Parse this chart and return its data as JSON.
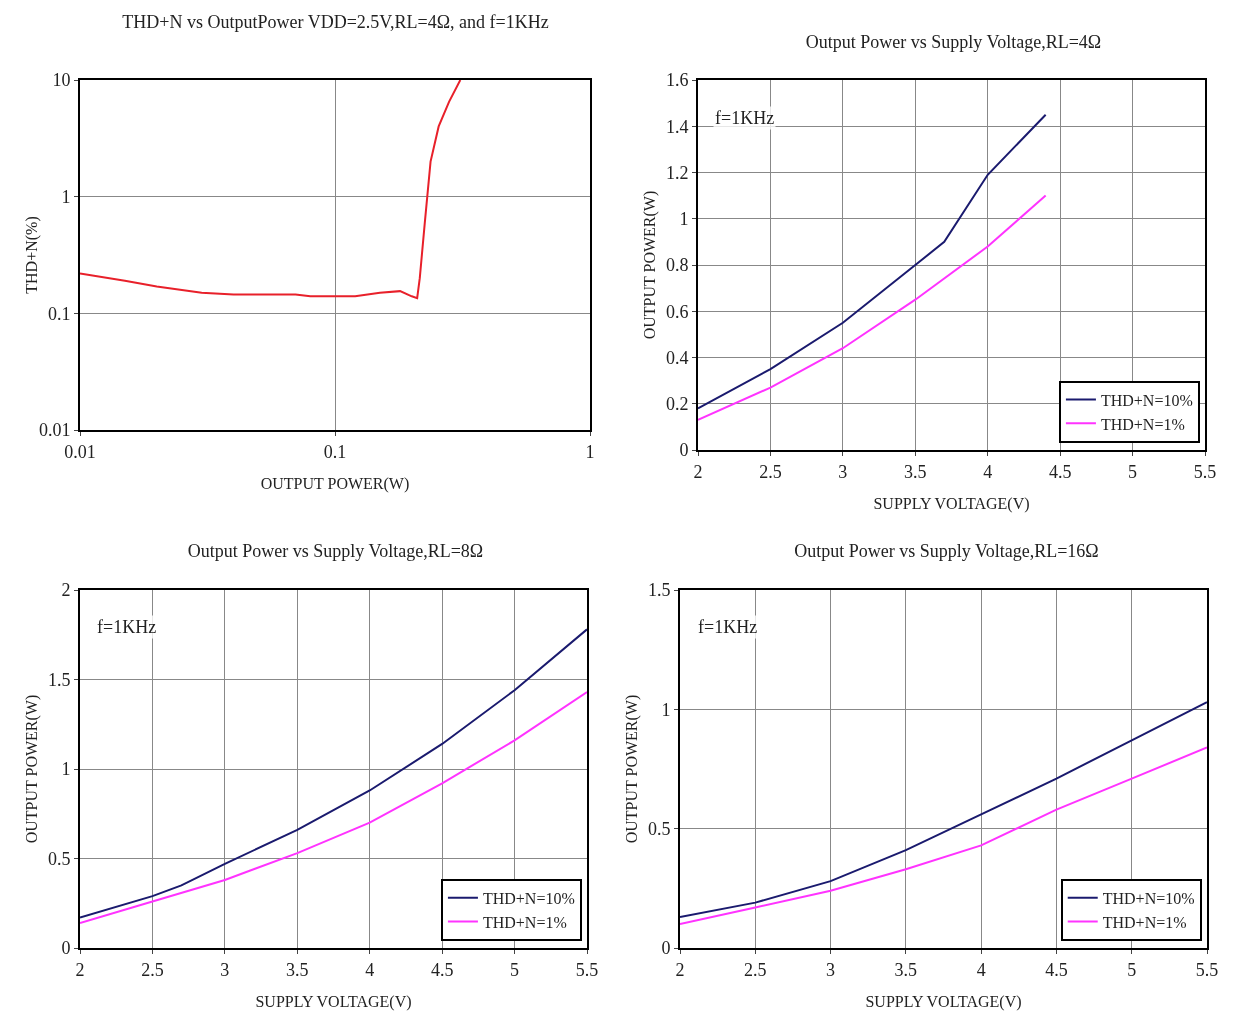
{
  "chart_data": [
    {
      "type": "line",
      "title": "THD+N vs OutputPower VDD=2.5V,RL=4Ω, and f=1KHz",
      "xlabel": "OUTPUT POWER(W)",
      "ylabel": "THD+N(%)",
      "log": "xy",
      "grid": true,
      "legend": false,
      "xlim": [
        0.01,
        1
      ],
      "xticks": [
        0.01,
        0.1,
        1
      ],
      "ylim": [
        0.01,
        10
      ],
      "yticks": [
        0.01,
        0.1,
        1,
        10
      ],
      "series": [
        {
          "color": "#e8202a",
          "x": [
            0.01,
            0.015,
            0.02,
            0.03,
            0.04,
            0.05,
            0.07,
            0.08,
            0.1,
            0.12,
            0.15,
            0.18,
            0.2,
            0.21,
            0.215,
            0.225,
            0.237,
            0.255,
            0.28,
            0.31
          ],
          "values": [
            0.22,
            0.19,
            0.17,
            0.15,
            0.145,
            0.145,
            0.145,
            0.14,
            0.14,
            0.14,
            0.15,
            0.155,
            0.14,
            0.135,
            0.2,
            0.6,
            2,
            4,
            6.5,
            10
          ]
        }
      ]
    },
    {
      "type": "line",
      "title": "Output Power vs Supply Voltage,RL=4Ω",
      "xlabel": "SUPPLY VOLTAGE(V)",
      "ylabel": "OUTPUT POWER(W)",
      "annotations": [
        "f=1KHz"
      ],
      "grid": true,
      "legend": "bottom right",
      "xlim": [
        2,
        5.5
      ],
      "xticks": [
        2,
        2.5,
        3,
        3.5,
        4,
        4.5,
        5,
        5.5
      ],
      "ylim": [
        0,
        1.6
      ],
      "yticks": [
        0,
        0.2,
        0.4,
        0.6,
        0.8,
        1,
        1.2,
        1.4,
        1.6
      ],
      "series": [
        {
          "name": "THD+N=10%",
          "color": "#1a1a6e",
          "x": [
            2,
            2.5,
            3,
            3.5,
            3.7,
            4,
            4.4
          ],
          "values": [
            0.18,
            0.35,
            0.55,
            0.8,
            0.9,
            1.19,
            1.45
          ]
        },
        {
          "name": "THD+N=1%",
          "color": "#ff33ff",
          "x": [
            2,
            2.5,
            3,
            3.5,
            4,
            4.4
          ],
          "values": [
            0.13,
            0.27,
            0.44,
            0.65,
            0.88,
            1.1
          ]
        }
      ]
    },
    {
      "type": "line",
      "title": "Output Power vs Supply Voltage,RL=8Ω",
      "xlabel": "SUPPLY VOLTAGE(V)",
      "ylabel": "OUTPUT POWER(W)",
      "annotations": [
        "f=1KHz"
      ],
      "grid": true,
      "legend": "bottom right",
      "xlim": [
        2,
        5.5
      ],
      "xticks": [
        2,
        2.5,
        3,
        3.5,
        4,
        4.5,
        5,
        5.5
      ],
      "ylim": [
        0,
        2
      ],
      "yticks": [
        0,
        0.5,
        1,
        1.5,
        2
      ],
      "series": [
        {
          "name": "THD+N=10%",
          "color": "#1a1a6e",
          "x": [
            2,
            2.5,
            2.7,
            3,
            3.5,
            4,
            4.5,
            5,
            5.5
          ],
          "values": [
            0.17,
            0.29,
            0.35,
            0.47,
            0.66,
            0.88,
            1.14,
            1.44,
            1.78
          ]
        },
        {
          "name": "THD+N=1%",
          "color": "#ff33ff",
          "x": [
            2,
            2.5,
            3,
            3.5,
            4,
            4.5,
            5,
            5.5
          ],
          "values": [
            0.14,
            0.26,
            0.38,
            0.53,
            0.7,
            0.92,
            1.16,
            1.43
          ]
        }
      ]
    },
    {
      "type": "line",
      "title": "Output Power vs Supply Voltage,RL=16Ω",
      "xlabel": "SUPPLY VOLTAGE(V)",
      "ylabel": "OUTPUT POWER(W)",
      "annotations": [
        "f=1KHz"
      ],
      "grid": true,
      "legend": "bottom right",
      "xlim": [
        2,
        5.5
      ],
      "xticks": [
        2,
        2.5,
        3,
        3.5,
        4,
        4.5,
        5,
        5.5
      ],
      "ylim": [
        0,
        1.5
      ],
      "yticks": [
        0,
        0.5,
        1,
        1.5
      ],
      "series": [
        {
          "name": "THD+N=10%",
          "color": "#1a1a6e",
          "x": [
            2,
            2.5,
            3,
            3.5,
            4,
            4.5,
            5,
            5.5
          ],
          "values": [
            0.13,
            0.19,
            0.28,
            0.41,
            0.56,
            0.71,
            0.87,
            1.03
          ]
        },
        {
          "name": "THD+N=1%",
          "color": "#ff33ff",
          "x": [
            2,
            2.5,
            3,
            3.5,
            4,
            4.5,
            5,
            5.5
          ],
          "values": [
            0.1,
            0.17,
            0.24,
            0.33,
            0.43,
            0.58,
            0.71,
            0.84
          ]
        }
      ]
    }
  ]
}
